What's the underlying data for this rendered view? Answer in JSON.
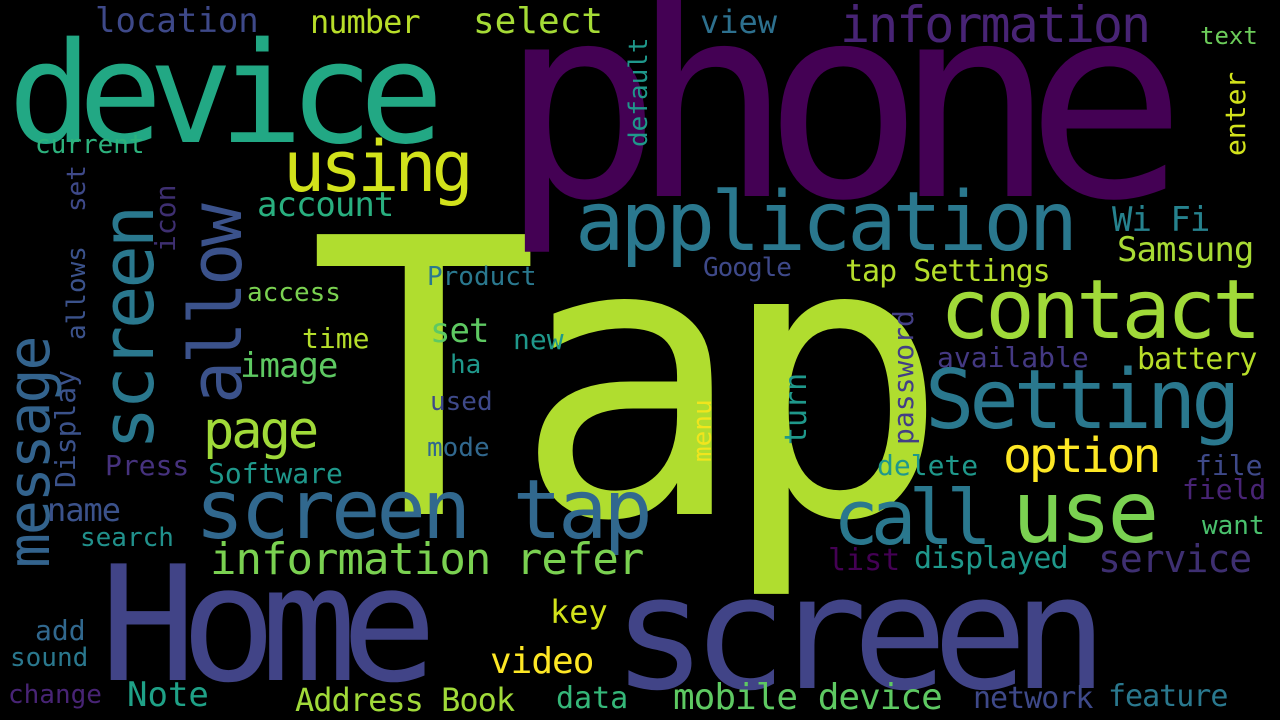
{
  "palette": {
    "background": "#000000",
    "purple": "#440154",
    "indigo": "#46327e",
    "blue": "#365c8d",
    "teal": "#277f8e",
    "green": "#1fa187",
    "lightgreen": "#4ac16d",
    "lime": "#a0da39",
    "yellow": "#fde725"
  },
  "words": [
    "Tap",
    "phone",
    "device",
    "Home",
    "screen",
    "screen",
    "application",
    "contact",
    "Setting",
    "use",
    "call",
    "screen tap",
    "allow",
    "message",
    "using",
    "information",
    "information refer",
    "page",
    "option",
    "service",
    "Samsung",
    "Wi Fi",
    "mobile device",
    "location",
    "number",
    "select",
    "view",
    "text",
    "enter",
    "default",
    "current",
    "set",
    "allows",
    "icon",
    "account",
    "access",
    "time",
    "image",
    "set",
    "new",
    "ha",
    "used",
    "mode",
    "Product",
    "Google",
    "tap Settings",
    "available",
    "battery",
    "password",
    "delete",
    "file",
    "field",
    "want",
    "displayed",
    "list",
    "menu",
    "turn",
    "Display",
    "Press",
    "Software",
    "name",
    "search",
    "add",
    "sound",
    "change",
    "Note",
    "Address Book",
    "data",
    "key",
    "video",
    "network",
    "feature"
  ]
}
